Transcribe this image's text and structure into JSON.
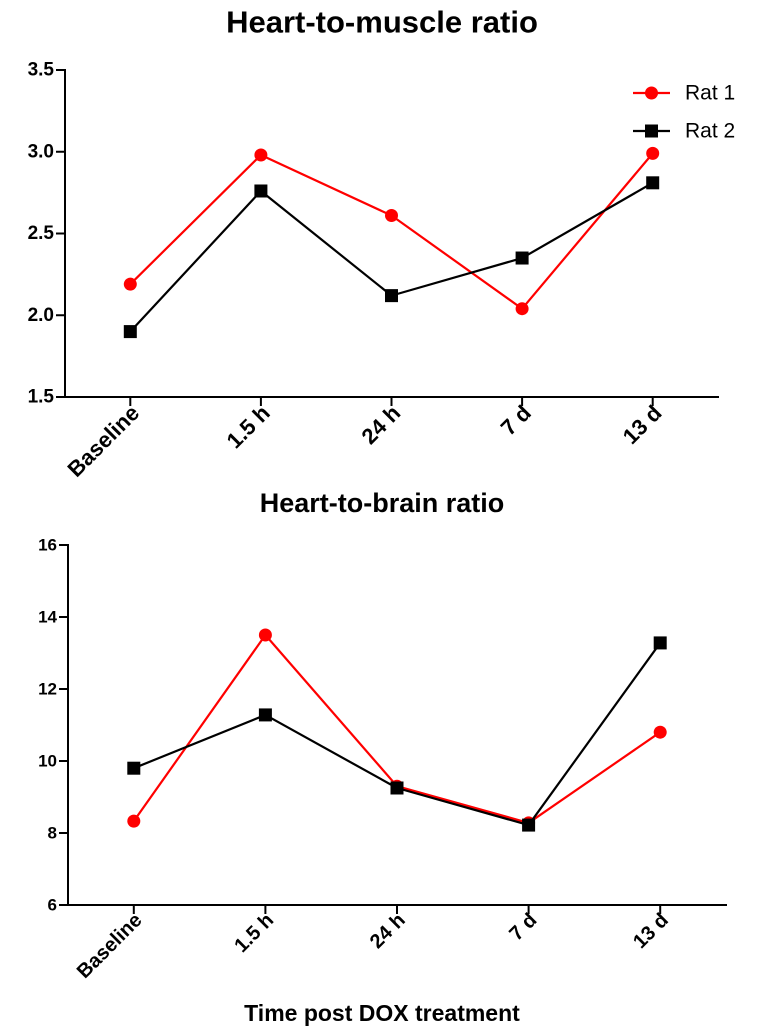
{
  "chart_data": [
    {
      "type": "line",
      "title": "Heart-to-muscle ratio",
      "categories": [
        "Baseline",
        "1.5 h",
        "24 h",
        "7 d",
        "13 d"
      ],
      "ylim": [
        1.5,
        3.5
      ],
      "yticks": [
        "1.5",
        "2.0",
        "2.5",
        "3.0",
        "3.5"
      ],
      "grid": false,
      "legend": "top-right",
      "series": [
        {
          "name": "Rat 1",
          "color": "#ff0000",
          "marker": "circle",
          "values": [
            2.19,
            2.98,
            2.61,
            2.04,
            2.99
          ]
        },
        {
          "name": "Rat 2",
          "color": "#000000",
          "marker": "square",
          "values": [
            1.9,
            2.76,
            2.12,
            2.35,
            2.81
          ]
        }
      ]
    },
    {
      "type": "line",
      "title": "Heart-to-brain ratio",
      "xlabel": "Time post DOX treatment",
      "categories": [
        "Baseline",
        "1.5 h",
        "24 h",
        "7 d",
        "13 d"
      ],
      "ylim": [
        6,
        16
      ],
      "yticks": [
        "6",
        "8",
        "10",
        "12",
        "14",
        "16"
      ],
      "grid": false,
      "series": [
        {
          "color": "#ff0000",
          "marker": "circle",
          "values": [
            8.33,
            13.5,
            9.3,
            8.28,
            10.8
          ]
        },
        {
          "color": "#000000",
          "marker": "square",
          "values": [
            9.8,
            11.28,
            9.25,
            8.22,
            13.28
          ]
        }
      ]
    }
  ]
}
